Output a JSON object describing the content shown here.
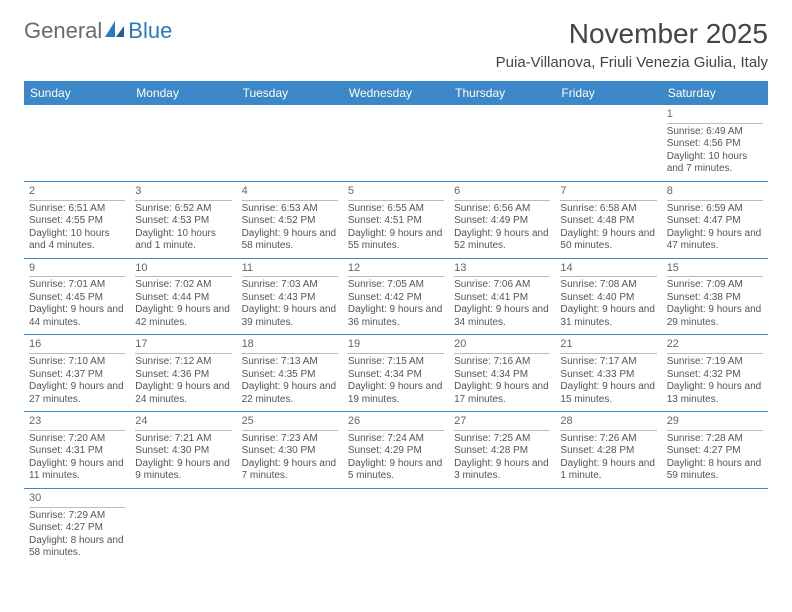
{
  "brand": {
    "general": "General",
    "blue": "Blue"
  },
  "title": "November 2025",
  "location": "Puia-Villanova, Friuli Venezia Giulia, Italy",
  "colors": {
    "header_bg": "#3b87c8",
    "header_fg": "#ffffff",
    "row_border": "#3b87c8",
    "daynum_border": "#bbbbbb",
    "text": "#555555"
  },
  "weekdays": [
    "Sunday",
    "Monday",
    "Tuesday",
    "Wednesday",
    "Thursday",
    "Friday",
    "Saturday"
  ],
  "weeks": [
    [
      null,
      null,
      null,
      null,
      null,
      null,
      {
        "n": "1",
        "sr": "Sunrise: 6:49 AM",
        "ss": "Sunset: 4:56 PM",
        "dl": "Daylight: 10 hours and 7 minutes."
      }
    ],
    [
      {
        "n": "2",
        "sr": "Sunrise: 6:51 AM",
        "ss": "Sunset: 4:55 PM",
        "dl": "Daylight: 10 hours and 4 minutes."
      },
      {
        "n": "3",
        "sr": "Sunrise: 6:52 AM",
        "ss": "Sunset: 4:53 PM",
        "dl": "Daylight: 10 hours and 1 minute."
      },
      {
        "n": "4",
        "sr": "Sunrise: 6:53 AM",
        "ss": "Sunset: 4:52 PM",
        "dl": "Daylight: 9 hours and 58 minutes."
      },
      {
        "n": "5",
        "sr": "Sunrise: 6:55 AM",
        "ss": "Sunset: 4:51 PM",
        "dl": "Daylight: 9 hours and 55 minutes."
      },
      {
        "n": "6",
        "sr": "Sunrise: 6:56 AM",
        "ss": "Sunset: 4:49 PM",
        "dl": "Daylight: 9 hours and 52 minutes."
      },
      {
        "n": "7",
        "sr": "Sunrise: 6:58 AM",
        "ss": "Sunset: 4:48 PM",
        "dl": "Daylight: 9 hours and 50 minutes."
      },
      {
        "n": "8",
        "sr": "Sunrise: 6:59 AM",
        "ss": "Sunset: 4:47 PM",
        "dl": "Daylight: 9 hours and 47 minutes."
      }
    ],
    [
      {
        "n": "9",
        "sr": "Sunrise: 7:01 AM",
        "ss": "Sunset: 4:45 PM",
        "dl": "Daylight: 9 hours and 44 minutes."
      },
      {
        "n": "10",
        "sr": "Sunrise: 7:02 AM",
        "ss": "Sunset: 4:44 PM",
        "dl": "Daylight: 9 hours and 42 minutes."
      },
      {
        "n": "11",
        "sr": "Sunrise: 7:03 AM",
        "ss": "Sunset: 4:43 PM",
        "dl": "Daylight: 9 hours and 39 minutes."
      },
      {
        "n": "12",
        "sr": "Sunrise: 7:05 AM",
        "ss": "Sunset: 4:42 PM",
        "dl": "Daylight: 9 hours and 36 minutes."
      },
      {
        "n": "13",
        "sr": "Sunrise: 7:06 AM",
        "ss": "Sunset: 4:41 PM",
        "dl": "Daylight: 9 hours and 34 minutes."
      },
      {
        "n": "14",
        "sr": "Sunrise: 7:08 AM",
        "ss": "Sunset: 4:40 PM",
        "dl": "Daylight: 9 hours and 31 minutes."
      },
      {
        "n": "15",
        "sr": "Sunrise: 7:09 AM",
        "ss": "Sunset: 4:38 PM",
        "dl": "Daylight: 9 hours and 29 minutes."
      }
    ],
    [
      {
        "n": "16",
        "sr": "Sunrise: 7:10 AM",
        "ss": "Sunset: 4:37 PM",
        "dl": "Daylight: 9 hours and 27 minutes."
      },
      {
        "n": "17",
        "sr": "Sunrise: 7:12 AM",
        "ss": "Sunset: 4:36 PM",
        "dl": "Daylight: 9 hours and 24 minutes."
      },
      {
        "n": "18",
        "sr": "Sunrise: 7:13 AM",
        "ss": "Sunset: 4:35 PM",
        "dl": "Daylight: 9 hours and 22 minutes."
      },
      {
        "n": "19",
        "sr": "Sunrise: 7:15 AM",
        "ss": "Sunset: 4:34 PM",
        "dl": "Daylight: 9 hours and 19 minutes."
      },
      {
        "n": "20",
        "sr": "Sunrise: 7:16 AM",
        "ss": "Sunset: 4:34 PM",
        "dl": "Daylight: 9 hours and 17 minutes."
      },
      {
        "n": "21",
        "sr": "Sunrise: 7:17 AM",
        "ss": "Sunset: 4:33 PM",
        "dl": "Daylight: 9 hours and 15 minutes."
      },
      {
        "n": "22",
        "sr": "Sunrise: 7:19 AM",
        "ss": "Sunset: 4:32 PM",
        "dl": "Daylight: 9 hours and 13 minutes."
      }
    ],
    [
      {
        "n": "23",
        "sr": "Sunrise: 7:20 AM",
        "ss": "Sunset: 4:31 PM",
        "dl": "Daylight: 9 hours and 11 minutes."
      },
      {
        "n": "24",
        "sr": "Sunrise: 7:21 AM",
        "ss": "Sunset: 4:30 PM",
        "dl": "Daylight: 9 hours and 9 minutes."
      },
      {
        "n": "25",
        "sr": "Sunrise: 7:23 AM",
        "ss": "Sunset: 4:30 PM",
        "dl": "Daylight: 9 hours and 7 minutes."
      },
      {
        "n": "26",
        "sr": "Sunrise: 7:24 AM",
        "ss": "Sunset: 4:29 PM",
        "dl": "Daylight: 9 hours and 5 minutes."
      },
      {
        "n": "27",
        "sr": "Sunrise: 7:25 AM",
        "ss": "Sunset: 4:28 PM",
        "dl": "Daylight: 9 hours and 3 minutes."
      },
      {
        "n": "28",
        "sr": "Sunrise: 7:26 AM",
        "ss": "Sunset: 4:28 PM",
        "dl": "Daylight: 9 hours and 1 minute."
      },
      {
        "n": "29",
        "sr": "Sunrise: 7:28 AM",
        "ss": "Sunset: 4:27 PM",
        "dl": "Daylight: 8 hours and 59 minutes."
      }
    ],
    [
      {
        "n": "30",
        "sr": "Sunrise: 7:29 AM",
        "ss": "Sunset: 4:27 PM",
        "dl": "Daylight: 8 hours and 58 minutes."
      },
      null,
      null,
      null,
      null,
      null,
      null
    ]
  ]
}
